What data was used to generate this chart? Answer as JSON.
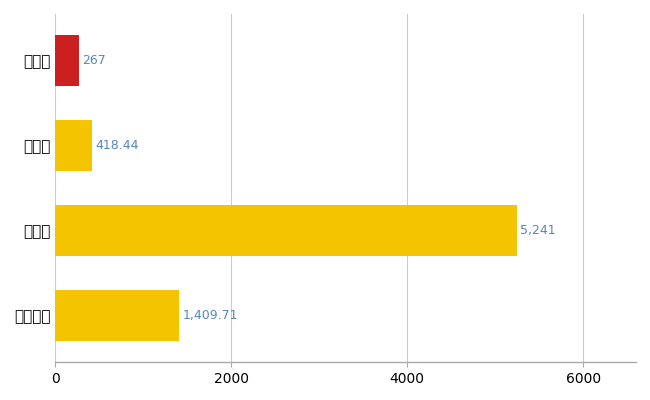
{
  "categories": [
    "新地町",
    "県平均",
    "県最大",
    "全国平均"
  ],
  "values": [
    267,
    418.44,
    5241,
    1409.71
  ],
  "bar_colors": [
    "#cc2020",
    "#f5c400",
    "#f5c400",
    "#f5c400"
  ],
  "value_labels": [
    "267",
    "418.44",
    "5,241",
    "1,409.71"
  ],
  "xlim": [
    0,
    6600
  ],
  "xticks": [
    0,
    2000,
    4000,
    6000
  ],
  "xtick_labels": [
    "0",
    "2000",
    "4000",
    "6000"
  ],
  "bar_height": 0.6,
  "grid_color": "#cccccc",
  "label_fontsize": 11,
  "tick_fontsize": 10,
  "value_label_fontsize": 9,
  "value_label_color": "#5588bb",
  "background_color": "#ffffff",
  "spine_color": "#aaaaaa"
}
